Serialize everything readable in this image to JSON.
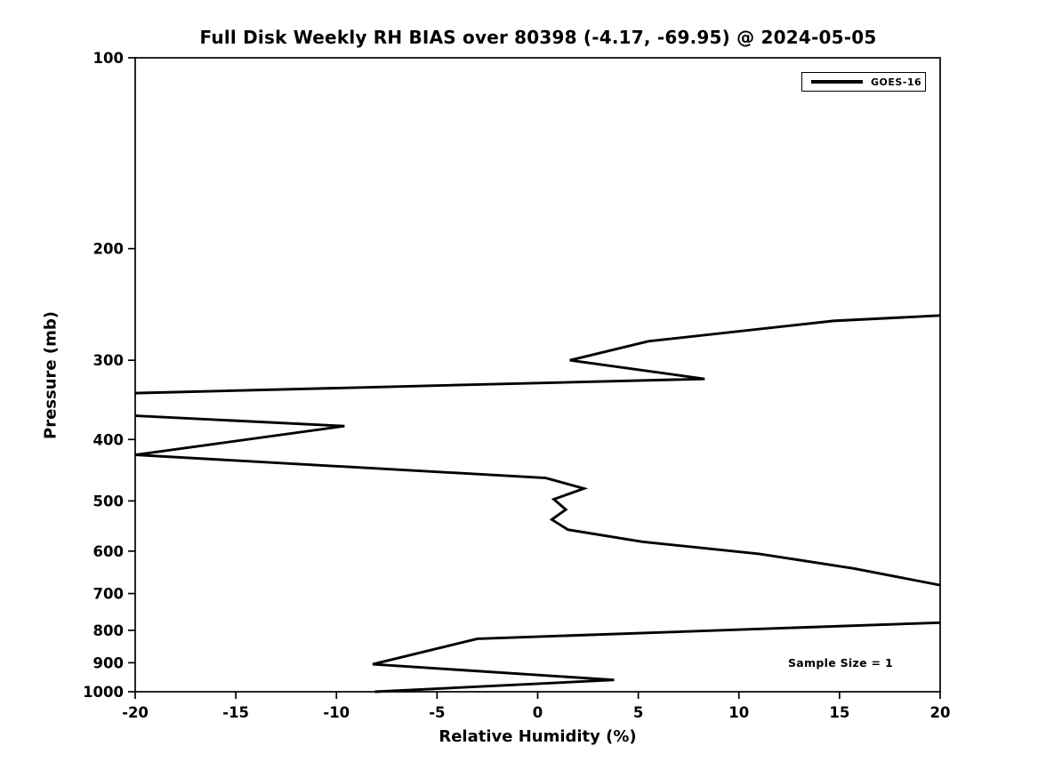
{
  "chart_data": {
    "type": "line",
    "title": "Full Disk Weekly RH BIAS over 80398 (-4.17, -69.95) @ 2024-05-05",
    "xlabel": "Relative Humidity (%)",
    "ylabel": "Pressure (mb)",
    "xlim": [
      -20,
      20
    ],
    "ylim": [
      1000,
      100
    ],
    "y_scale": "log",
    "y_inverted": true,
    "x_ticks": [
      -20,
      -15,
      -10,
      -5,
      0,
      5,
      10,
      15,
      20
    ],
    "y_ticks": [
      100,
      200,
      300,
      400,
      500,
      600,
      700,
      800,
      900,
      1000
    ],
    "grid": false,
    "line_color": "#000000",
    "background_color": "#ffffff",
    "legend_position": "upper right",
    "series": [
      {
        "name": "GOES-16",
        "color": "#000000",
        "note": "RH bias (%) vs pressure (mb); curve clipped at x = -20 and x = +20 (gaps along spines 338-367 mb left, 679-778 mb right)",
        "segments": [
          [
            [
              20.0,
              255
            ],
            [
              14.7,
              260
            ],
            [
              5.5,
              280
            ],
            [
              1.6,
              300
            ],
            [
              8.3,
              321
            ],
            [
              -20.0,
              338
            ]
          ],
          [
            [
              -20.0,
              367
            ],
            [
              -9.6,
              381
            ],
            [
              -20.0,
              423
            ],
            [
              0.4,
              460
            ],
            [
              2.3,
              478
            ],
            [
              0.8,
              497
            ],
            [
              1.4,
              516
            ],
            [
              0.7,
              535
            ],
            [
              1.5,
              555
            ],
            [
              5.2,
              580
            ],
            [
              11.0,
              606
            ],
            [
              15.7,
              639
            ],
            [
              20.0,
              679
            ]
          ],
          [
            [
              20.0,
              778
            ],
            [
              -3.0,
              825
            ],
            [
              -8.2,
              905
            ],
            [
              3.8,
              958
            ],
            [
              -8.1,
              1000
            ]
          ]
        ]
      }
    ],
    "annotations": [
      {
        "text": "Sample Size = 1",
        "x": 12.5,
        "y": 925
      }
    ]
  }
}
